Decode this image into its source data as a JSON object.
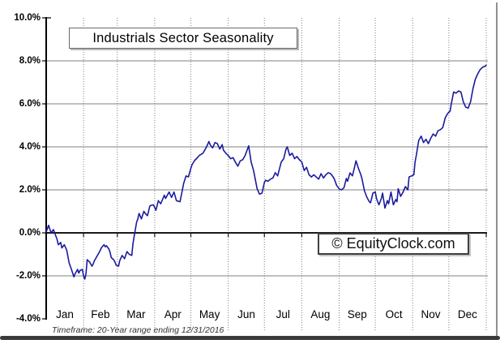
{
  "watermark": {
    "text": "© EquityClock.com"
  },
  "footer": {
    "text": "Timeframe: 20-Year range ending 12/31/2016"
  },
  "colors": {
    "line": "#1b1b9e",
    "gridline": "#808080",
    "axis": "#000000",
    "zero_line": "#1a1a1a",
    "background": "#ffffff",
    "bottom_bar": "#3a3a3a",
    "right_border": "#909090"
  },
  "chart_data": {
    "type": "line",
    "title": "Industrials Sector Seasonality",
    "legend_position": "none",
    "grid": "horizontal-solid-plus-vertical-dotted-month-separators",
    "y_axis": {
      "min": -4,
      "max": 10,
      "tick_values": [
        10,
        8,
        6,
        4,
        2,
        0,
        -2,
        -4
      ],
      "tick_labels": [
        "10.0%",
        "8.0%",
        "6.0%",
        "4.0%",
        "2.0%",
        "0.0%",
        "-2.0%",
        "-4.0%"
      ],
      "gridline_values": [
        8,
        6,
        4,
        2,
        -2
      ],
      "zero_line_dark": true
    },
    "x_axis": {
      "months": [
        "Jan",
        "Feb",
        "Mar",
        "Apr",
        "May",
        "Jun",
        "Jul",
        "Aug",
        "Sep",
        "Oct",
        "Nov",
        "Dec"
      ],
      "month_end_days": [
        31,
        59,
        90,
        120,
        151,
        181,
        212,
        243,
        273,
        304,
        334,
        365
      ],
      "days_in_year": 365
    },
    "series": [
      {
        "color": "#1b1b9e",
        "x_day_of_year": [
          0,
          2,
          4,
          6,
          9,
          10,
          12,
          13,
          15,
          17,
          19,
          21,
          23,
          24,
          26,
          27,
          28,
          30,
          31,
          32,
          33,
          34,
          36,
          38,
          39,
          40,
          42,
          44,
          46,
          48,
          49,
          50,
          52,
          53,
          54,
          56,
          57,
          58,
          60,
          61,
          63,
          65,
          67,
          69,
          71,
          72,
          73,
          75,
          76,
          77,
          79,
          81,
          83,
          84,
          86,
          87,
          89,
          91,
          93,
          95,
          98,
          99,
          102,
          104,
          106,
          108,
          111,
          113,
          114,
          116,
          118,
          120,
          121,
          123,
          125,
          127,
          130,
          132,
          133,
          135,
          136,
          138,
          140,
          142,
          144,
          146,
          147,
          149,
          151,
          153,
          155,
          157,
          159,
          161,
          163,
          165,
          168,
          170,
          172,
          175,
          177,
          179,
          181,
          182,
          184,
          186,
          188,
          190,
          192,
          195,
          197,
          199,
          200,
          202,
          204,
          206,
          208,
          210,
          212,
          214,
          216,
          218,
          220,
          222,
          224,
          226,
          228,
          230,
          232,
          234,
          236,
          238,
          239,
          241,
          243,
          245,
          247,
          249,
          250,
          252,
          254,
          256,
          257,
          259,
          261,
          262,
          264,
          266,
          268,
          269,
          271,
          273,
          274,
          276,
          278,
          279,
          281,
          283,
          284,
          286,
          288,
          290,
          291,
          292,
          294,
          296,
          298,
          300,
          301,
          303,
          305,
          306,
          307,
          309,
          311,
          313,
          315,
          317,
          319,
          321,
          323,
          325,
          327,
          329,
          331,
          333,
          335,
          336,
          338,
          340,
          342,
          344,
          346,
          348,
          350,
          352,
          354,
          356,
          358,
          360,
          362,
          364,
          365
        ],
        "y_percent": [
          0.05,
          0.35,
          0.0,
          0.15,
          -0.3,
          -0.55,
          -0.45,
          -0.7,
          -0.55,
          -0.8,
          -1.4,
          -1.7,
          -2.05,
          -1.9,
          -1.7,
          -1.87,
          -1.75,
          -1.7,
          -2.0,
          -2.15,
          -1.9,
          -1.25,
          -1.36,
          -1.55,
          -1.45,
          -1.3,
          -1.1,
          -0.9,
          -0.68,
          -0.55,
          -0.65,
          -0.6,
          -0.75,
          -0.9,
          -1.15,
          -1.25,
          -1.35,
          -1.5,
          -1.55,
          -1.3,
          -1.05,
          -1.2,
          -0.87,
          -1.0,
          -1.05,
          -0.5,
          -0.15,
          0.5,
          0.65,
          0.9,
          0.65,
          1.0,
          0.85,
          0.8,
          1.25,
          1.28,
          1.3,
          1.05,
          1.5,
          1.35,
          1.75,
          1.6,
          1.9,
          1.65,
          1.9,
          1.5,
          1.45,
          2.0,
          2.3,
          2.65,
          2.6,
          3.0,
          3.17,
          3.36,
          3.47,
          3.6,
          3.7,
          3.9,
          4.0,
          4.25,
          4.1,
          3.95,
          4.2,
          4.15,
          3.9,
          4.1,
          3.85,
          3.7,
          3.6,
          3.45,
          3.5,
          3.28,
          3.1,
          3.35,
          3.4,
          3.6,
          4.05,
          3.3,
          2.9,
          2.05,
          1.8,
          1.85,
          2.35,
          2.45,
          2.4,
          2.5,
          2.55,
          2.8,
          2.65,
          3.3,
          3.45,
          3.9,
          4.0,
          3.6,
          3.7,
          3.45,
          3.55,
          3.4,
          3.3,
          2.9,
          3.05,
          2.7,
          2.6,
          2.7,
          2.6,
          2.5,
          2.75,
          2.55,
          2.7,
          2.8,
          2.75,
          2.6,
          2.5,
          2.2,
          2.05,
          2.0,
          2.1,
          2.53,
          2.4,
          2.79,
          2.65,
          3.1,
          3.35,
          3.0,
          2.7,
          2.5,
          1.96,
          1.66,
          1.45,
          1.4,
          1.85,
          1.9,
          1.6,
          1.3,
          1.6,
          1.85,
          1.15,
          1.5,
          1.35,
          1.9,
          1.3,
          1.55,
          1.45,
          2.05,
          1.7,
          1.9,
          2.15,
          2.0,
          2.6,
          2.65,
          2.7,
          3.3,
          3.6,
          4.3,
          4.5,
          4.2,
          4.35,
          4.15,
          4.4,
          4.6,
          4.5,
          4.75,
          4.8,
          4.9,
          5.35,
          5.55,
          5.66,
          6.0,
          6.55,
          6.5,
          6.6,
          6.55,
          6.1,
          5.85,
          5.8,
          6.1,
          6.7,
          7.15,
          7.4,
          7.6,
          7.7,
          7.75,
          7.8
        ]
      }
    ]
  }
}
